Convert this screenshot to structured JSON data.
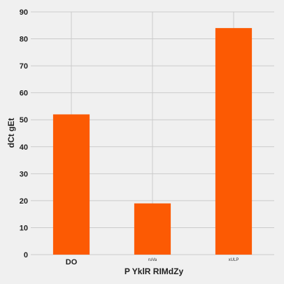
{
  "chart_data": {
    "type": "bar",
    "title": "",
    "xlabel": "P YklR RIMdZy",
    "ylabel": "dCt  gEt",
    "categories": [
      "DO",
      "ruVa",
      "xULP"
    ],
    "values": [
      52,
      19,
      84
    ],
    "ylim": [
      0,
      90
    ],
    "yticks": [
      0,
      10,
      20,
      30,
      40,
      50,
      60,
      70,
      80,
      90
    ],
    "grid": true,
    "bar_color": "#fc5a03",
    "background": "#f0f0f0"
  }
}
